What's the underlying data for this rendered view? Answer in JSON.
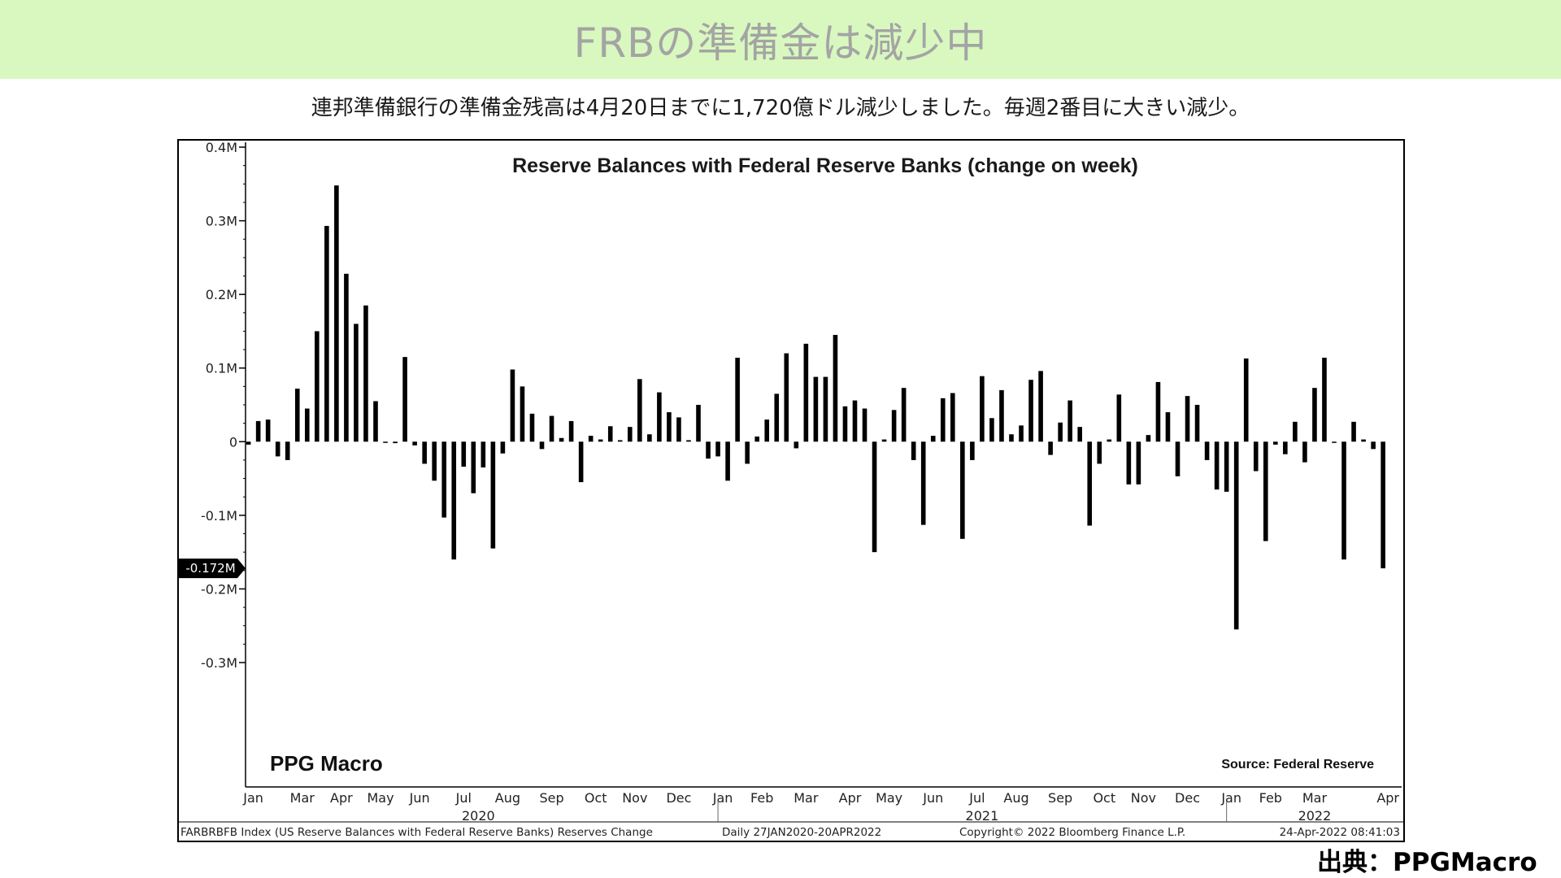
{
  "header": {
    "title": "FRBの準備金は減少中"
  },
  "subtitle": "連邦準備銀行の準備金残高は4月20日までに1,720億ドル減少しました。毎週2番目に大きい減少。",
  "source_credit": "出典：PPGMacro",
  "chart_data": {
    "type": "bar",
    "title": "Reserve Balances with Federal Reserve Banks (change on week)",
    "watermark": "PPG Macro",
    "source_note": "Source: Federal Reserve",
    "y_ticks": [
      {
        "v": 0.4,
        "label": "0.4M"
      },
      {
        "v": 0.3,
        "label": "0.3M"
      },
      {
        "v": 0.2,
        "label": "0.2M"
      },
      {
        "v": 0.1,
        "label": "0.1M"
      },
      {
        "v": 0,
        "label": "0"
      },
      {
        "v": -0.1,
        "label": "-0.1M"
      },
      {
        "v": -0.2,
        "label": "-0.2M"
      },
      {
        "v": -0.3,
        "label": "-0.3M"
      }
    ],
    "ylim": [
      -0.3,
      0.4
    ],
    "last_value_label": "-0.172M",
    "last_value": -0.172,
    "x_range": [
      -0.3,
      117.9
    ],
    "month_ticks": [
      {
        "pos": 0.5,
        "label": "Jan"
      },
      {
        "pos": 5.5,
        "label": "Mar"
      },
      {
        "pos": 9.5,
        "label": "Apr"
      },
      {
        "pos": 13.5,
        "label": "May"
      },
      {
        "pos": 17.5,
        "label": "Jun"
      },
      {
        "pos": 22,
        "label": "Jul"
      },
      {
        "pos": 26.5,
        "label": "Aug"
      },
      {
        "pos": 31,
        "label": "Sep"
      },
      {
        "pos": 35.5,
        "label": "Oct"
      },
      {
        "pos": 39.5,
        "label": "Nov"
      },
      {
        "pos": 44,
        "label": "Dec"
      },
      {
        "pos": 48.5,
        "label": "Jan"
      },
      {
        "pos": 52.5,
        "label": "Feb"
      },
      {
        "pos": 57,
        "label": "Mar"
      },
      {
        "pos": 61.5,
        "label": "Apr"
      },
      {
        "pos": 65.5,
        "label": "May"
      },
      {
        "pos": 70,
        "label": "Jun"
      },
      {
        "pos": 74.5,
        "label": "Jul"
      },
      {
        "pos": 78.5,
        "label": "Aug"
      },
      {
        "pos": 83,
        "label": "Sep"
      },
      {
        "pos": 87.5,
        "label": "Oct"
      },
      {
        "pos": 91.5,
        "label": "Nov"
      },
      {
        "pos": 96,
        "label": "Dec"
      },
      {
        "pos": 100.5,
        "label": "Jan"
      },
      {
        "pos": 104.5,
        "label": "Feb"
      },
      {
        "pos": 109,
        "label": "Mar"
      },
      {
        "pos": 116.5,
        "label": "Apr"
      }
    ],
    "year_labels": [
      {
        "pos": 23.5,
        "label": "2020"
      },
      {
        "pos": 75,
        "label": "2021"
      },
      {
        "pos": 109,
        "label": "2022"
      }
    ],
    "year_separators": [
      48,
      100
    ],
    "footer_left": "FARBRBFB Index (US Reserve Balances with Federal Reserve Banks) Reserves Change",
    "footer_mid": "Daily 27JAN2020-20APR2022",
    "footer_copyright": "Copyright© 2022 Bloomberg Finance L.P.",
    "footer_timestamp": "24-Apr-2022 08:41:03",
    "values": [
      -0.004,
      0.028,
      0.03,
      -0.02,
      -0.025,
      0.072,
      0.045,
      0.15,
      0.293,
      0.348,
      0.228,
      0.16,
      0.185,
      0.055,
      0.0,
      -0.002,
      0.115,
      -0.005,
      -0.03,
      -0.053,
      -0.103,
      -0.16,
      -0.034,
      -0.07,
      -0.035,
      -0.145,
      -0.016,
      0.098,
      0.075,
      0.038,
      -0.01,
      0.035,
      0.005,
      0.028,
      -0.055,
      0.008,
      0.003,
      0.021,
      0.002,
      0.02,
      0.085,
      0.01,
      0.067,
      0.04,
      0.033,
      0.002,
      0.05,
      -0.023,
      -0.02,
      -0.053,
      0.114,
      -0.03,
      0.007,
      0.03,
      0.065,
      0.12,
      -0.009,
      0.133,
      0.088,
      0.088,
      0.145,
      0.048,
      0.056,
      0.045,
      -0.15,
      0.003,
      0.043,
      0.073,
      -0.025,
      -0.113,
      0.008,
      0.059,
      0.066,
      -0.132,
      -0.025,
      0.089,
      0.032,
      0.07,
      0.01,
      0.022,
      0.084,
      0.096,
      -0.018,
      0.026,
      0.056,
      0.02,
      -0.114,
      -0.03,
      0.003,
      0.064,
      -0.058,
      -0.058,
      0.009,
      0.081,
      0.04,
      -0.047,
      0.062,
      0.05,
      -0.025,
      -0.065,
      -0.068,
      -0.255,
      0.113,
      -0.04,
      -0.135,
      -0.004,
      -0.017,
      0.027,
      -0.028,
      0.073,
      0.114,
      0.0,
      -0.16,
      0.027,
      0.003,
      -0.01,
      -0.172
    ]
  }
}
